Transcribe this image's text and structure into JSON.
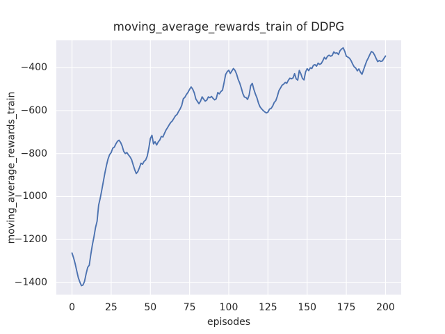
{
  "chart_data": {
    "type": "line",
    "title": "moving_average_rewards_train of DDPG",
    "xlabel": "episodes",
    "ylabel": "moving_average_rewards_train",
    "x_ticks": [
      0,
      25,
      50,
      75,
      100,
      125,
      150,
      175,
      200
    ],
    "y_ticks": [
      -400,
      -600,
      -800,
      -1000,
      -1200,
      -1400
    ],
    "xlim": [
      -10,
      210
    ],
    "ylim": [
      -1457,
      -273
    ],
    "grid": true,
    "grid_style": "seaborn-darkgrid",
    "legend_position": "none",
    "colors": {
      "line": "#4c72b0",
      "axes_background": "#eaeaf2",
      "grid": "#ffffff",
      "text": "#262626",
      "figure_background": "#ffffff"
    },
    "series": [
      {
        "name": "moving_average_rewards_train",
        "x_start": 0,
        "x_step": 1,
        "y": [
          -1263,
          -1285,
          -1312,
          -1345,
          -1377,
          -1398,
          -1415,
          -1412,
          -1395,
          -1360,
          -1330,
          -1320,
          -1270,
          -1225,
          -1188,
          -1145,
          -1115,
          -1040,
          -1008,
          -970,
          -930,
          -890,
          -855,
          -825,
          -805,
          -795,
          -775,
          -770,
          -755,
          -743,
          -738,
          -748,
          -765,
          -790,
          -800,
          -795,
          -806,
          -815,
          -828,
          -852,
          -875,
          -893,
          -884,
          -866,
          -845,
          -850,
          -836,
          -830,
          -812,
          -775,
          -730,
          -715,
          -755,
          -745,
          -760,
          -746,
          -737,
          -720,
          -723,
          -706,
          -690,
          -679,
          -666,
          -655,
          -648,
          -636,
          -624,
          -618,
          -604,
          -592,
          -576,
          -545,
          -538,
          -525,
          -515,
          -501,
          -490,
          -500,
          -517,
          -546,
          -557,
          -568,
          -556,
          -536,
          -547,
          -556,
          -551,
          -536,
          -540,
          -534,
          -543,
          -550,
          -545,
          -516,
          -522,
          -511,
          -505,
          -470,
          -432,
          -419,
          -412,
          -427,
          -415,
          -404,
          -413,
          -430,
          -455,
          -472,
          -495,
          -521,
          -537,
          -539,
          -548,
          -528,
          -484,
          -473,
          -501,
          -523,
          -541,
          -566,
          -583,
          -592,
          -600,
          -606,
          -611,
          -607,
          -593,
          -590,
          -579,
          -562,
          -554,
          -533,
          -507,
          -495,
          -482,
          -477,
          -469,
          -473,
          -459,
          -449,
          -452,
          -448,
          -428,
          -452,
          -458,
          -413,
          -429,
          -450,
          -457,
          -420,
          -405,
          -414,
          -401,
          -404,
          -389,
          -386,
          -393,
          -379,
          -385,
          -381,
          -368,
          -352,
          -360,
          -347,
          -342,
          -347,
          -343,
          -327,
          -333,
          -331,
          -339,
          -321,
          -313,
          -308,
          -324,
          -347,
          -351,
          -356,
          -367,
          -383,
          -396,
          -402,
          -415,
          -406,
          -421,
          -431,
          -410,
          -389,
          -369,
          -355,
          -339,
          -325,
          -329,
          -341,
          -357,
          -372,
          -367,
          -371,
          -369,
          -357,
          -346
        ]
      }
    ]
  }
}
